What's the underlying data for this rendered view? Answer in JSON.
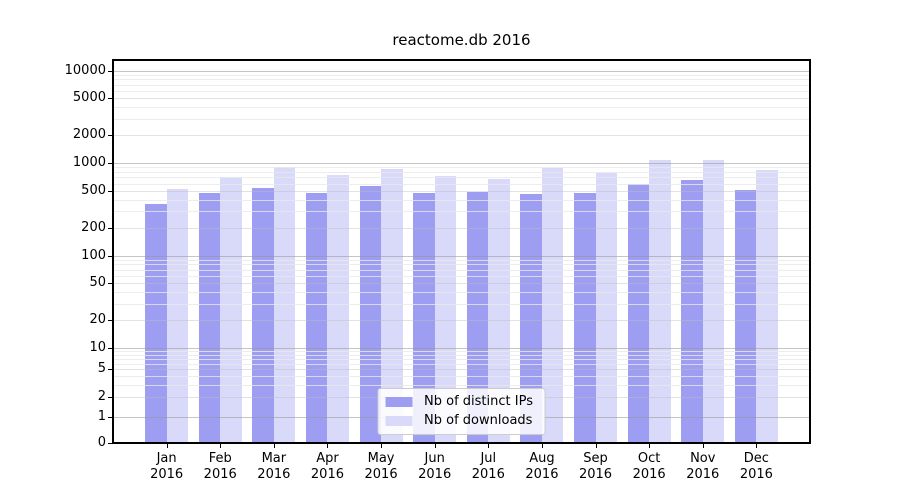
{
  "page": {
    "background": "#ffffff"
  },
  "chart_data": {
    "type": "bar",
    "title": "reactome.db 2016",
    "categories": [
      "Jan",
      "Feb",
      "Mar",
      "Apr",
      "May",
      "Jun",
      "Jul",
      "Aug",
      "Sep",
      "Oct",
      "Nov",
      "Dec"
    ],
    "x_second_line": "2016",
    "series": [
      {
        "name": "Nb of distinct IPs",
        "key": "distinct-ips",
        "color": "#9d9df1",
        "values": [
          360,
          470,
          540,
          475,
          565,
          475,
          485,
          460,
          475,
          595,
          655,
          515
        ]
      },
      {
        "name": "Nb of downloads",
        "key": "downloads",
        "color": "#d9d9fa",
        "values": [
          530,
          700,
          910,
          745,
          865,
          725,
          675,
          880,
          785,
          1080,
          1080,
          845
        ]
      }
    ],
    "yscale": "symlog",
    "ylim": [
      0,
      13000
    ],
    "yticks": [
      0,
      1,
      2,
      5,
      10,
      20,
      50,
      100,
      200,
      500,
      1000,
      2000,
      5000,
      10000
    ],
    "grid": true,
    "legend_position": "lower center",
    "axis_color": "#000000",
    "grid_major_color": "#c5c5c5",
    "grid_minor_color": "#ededed"
  }
}
